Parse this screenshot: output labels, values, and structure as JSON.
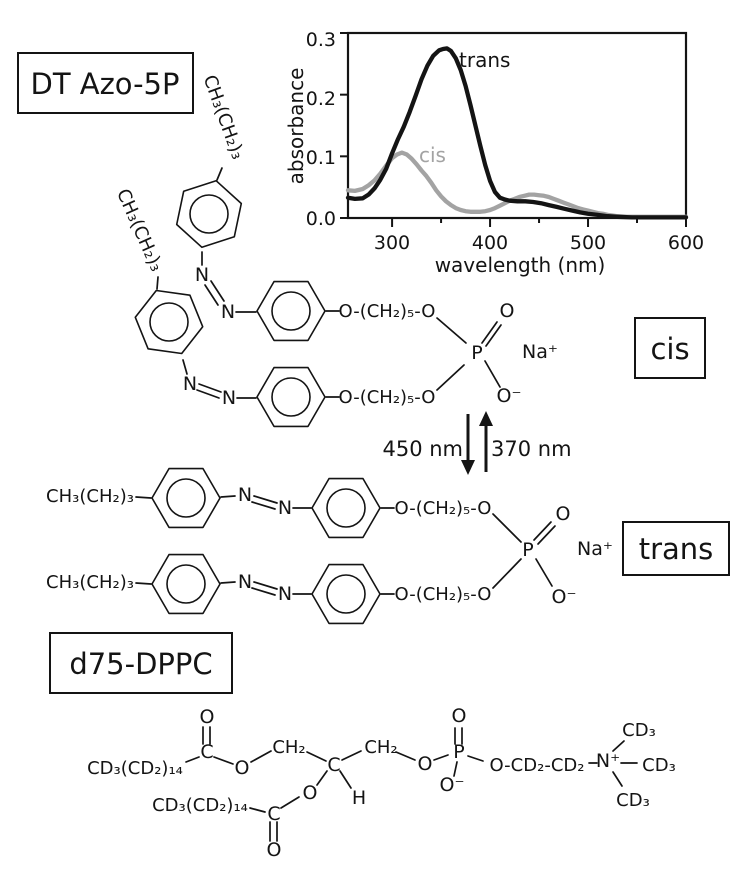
{
  "figure": {
    "title_box_1": "DT Azo-5P",
    "title_box_2": "d75-DPPC",
    "cis_label": "cis",
    "trans_label": "trans",
    "switch": {
      "left": "450 nm",
      "right": "370 nm"
    }
  },
  "chart_data": {
    "type": "line",
    "title": "",
    "xlabel": "wavelength (nm)",
    "ylabel": "absorbance",
    "xlim": [
      255,
      600
    ],
    "ylim": [
      0,
      0.3
    ],
    "x_ticks": [
      300,
      400,
      500,
      600
    ],
    "x_minor_ticks": [
      350,
      450,
      550
    ],
    "y_ticks": [
      0.0,
      0.1,
      0.2,
      0.3
    ],
    "x_tick_labels": [
      "300",
      "400",
      "500",
      "600"
    ],
    "y_tick_labels": [
      "0.0",
      "0.1",
      "0.2",
      "0.3"
    ],
    "legend_position": "labels on curves",
    "grid": false,
    "series": [
      {
        "name": "trans",
        "color": "#141414",
        "points": [
          [
            255,
            0.033
          ],
          [
            262,
            0.031
          ],
          [
            270,
            0.032
          ],
          [
            276,
            0.038
          ],
          [
            282,
            0.048
          ],
          [
            288,
            0.062
          ],
          [
            294,
            0.08
          ],
          [
            300,
            0.105
          ],
          [
            306,
            0.128
          ],
          [
            312,
            0.148
          ],
          [
            318,
            0.172
          ],
          [
            324,
            0.198
          ],
          [
            330,
            0.225
          ],
          [
            336,
            0.247
          ],
          [
            342,
            0.263
          ],
          [
            348,
            0.272
          ],
          [
            352,
            0.274
          ],
          [
            356,
            0.275
          ],
          [
            360,
            0.271
          ],
          [
            365,
            0.259
          ],
          [
            370,
            0.24
          ],
          [
            375,
            0.214
          ],
          [
            380,
            0.183
          ],
          [
            385,
            0.15
          ],
          [
            390,
            0.117
          ],
          [
            395,
            0.086
          ],
          [
            400,
            0.06
          ],
          [
            405,
            0.042
          ],
          [
            410,
            0.033
          ],
          [
            415,
            0.03
          ],
          [
            420,
            0.028
          ],
          [
            428,
            0.027
          ],
          [
            436,
            0.027
          ],
          [
            444,
            0.026
          ],
          [
            452,
            0.024
          ],
          [
            460,
            0.021
          ],
          [
            468,
            0.018
          ],
          [
            476,
            0.015
          ],
          [
            484,
            0.012
          ],
          [
            492,
            0.009
          ],
          [
            500,
            0.007
          ],
          [
            510,
            0.005
          ],
          [
            520,
            0.003
          ],
          [
            530,
            0.002
          ],
          [
            545,
            0.001
          ],
          [
            560,
            0.001
          ],
          [
            580,
            0.001
          ],
          [
            600,
            0.001
          ]
        ]
      },
      {
        "name": "cis",
        "color": "#a3a3a3",
        "points": [
          [
            255,
            0.045
          ],
          [
            262,
            0.044
          ],
          [
            270,
            0.047
          ],
          [
            276,
            0.053
          ],
          [
            282,
            0.061
          ],
          [
            288,
            0.072
          ],
          [
            294,
            0.085
          ],
          [
            300,
            0.097
          ],
          [
            305,
            0.103
          ],
          [
            310,
            0.106
          ],
          [
            315,
            0.103
          ],
          [
            320,
            0.096
          ],
          [
            325,
            0.087
          ],
          [
            330,
            0.077
          ],
          [
            335,
            0.068
          ],
          [
            340,
            0.057
          ],
          [
            345,
            0.045
          ],
          [
            350,
            0.035
          ],
          [
            355,
            0.027
          ],
          [
            360,
            0.021
          ],
          [
            365,
            0.016
          ],
          [
            370,
            0.013
          ],
          [
            375,
            0.011
          ],
          [
            380,
            0.01
          ],
          [
            385,
            0.01
          ],
          [
            390,
            0.01
          ],
          [
            395,
            0.011
          ],
          [
            400,
            0.013
          ],
          [
            405,
            0.016
          ],
          [
            410,
            0.02
          ],
          [
            415,
            0.024
          ],
          [
            420,
            0.028
          ],
          [
            425,
            0.031
          ],
          [
            430,
            0.034
          ],
          [
            435,
            0.036
          ],
          [
            440,
            0.038
          ],
          [
            445,
            0.038
          ],
          [
            450,
            0.037
          ],
          [
            455,
            0.036
          ],
          [
            460,
            0.034
          ],
          [
            465,
            0.031
          ],
          [
            470,
            0.028
          ],
          [
            475,
            0.025
          ],
          [
            480,
            0.022
          ],
          [
            485,
            0.019
          ],
          [
            490,
            0.016
          ],
          [
            495,
            0.014
          ],
          [
            500,
            0.012
          ],
          [
            505,
            0.01
          ],
          [
            510,
            0.008
          ],
          [
            515,
            0.007
          ],
          [
            520,
            0.005
          ],
          [
            525,
            0.004
          ],
          [
            530,
            0.003
          ],
          [
            540,
            0.002
          ],
          [
            550,
            0.002
          ],
          [
            565,
            0.002
          ],
          [
            580,
            0.002
          ],
          [
            600,
            0.002
          ]
        ]
      }
    ]
  },
  "molecules": {
    "azo": {
      "butyl": "CH₃(CH₂)₃",
      "linker": "O-(CH₂)₅-O",
      "n": "N",
      "p": "P",
      "o": "O",
      "o_minus": "O⁻",
      "na": "Na⁺"
    },
    "dppc": {
      "chain": "CD₃(CD₂)₁₄",
      "ch2": "CH₂",
      "c": "C",
      "h": "H",
      "o": "O",
      "o_minus": "O⁻",
      "p": "P",
      "ocd2cd2": "O-CD₂-CD₂",
      "n_plus": "N⁺",
      "cd3": "CD₃"
    }
  }
}
